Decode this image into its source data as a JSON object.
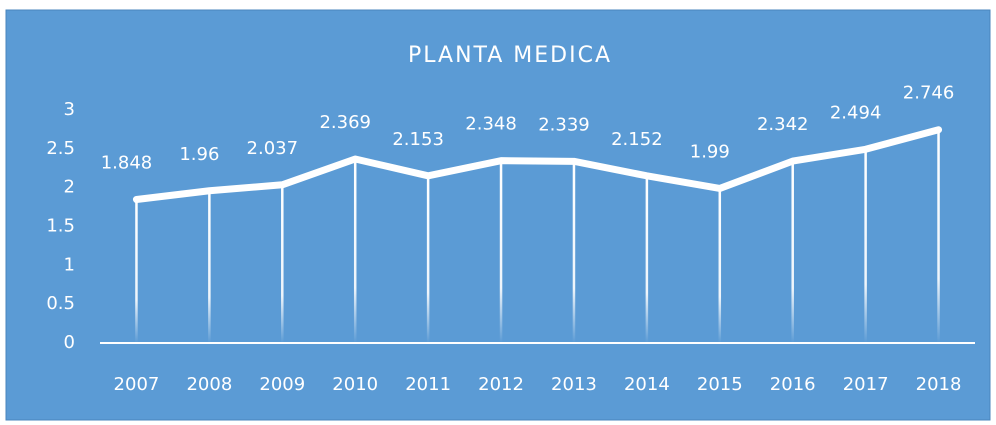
{
  "chart_data": {
    "type": "line",
    "title": "PLANTA MEDICA",
    "categories": [
      "2007",
      "2008",
      "2009",
      "2010",
      "2011",
      "2012",
      "2013",
      "2014",
      "2015",
      "2016",
      "2017",
      "2018"
    ],
    "values": [
      1.848,
      1.96,
      2.037,
      2.369,
      2.153,
      2.348,
      2.339,
      2.152,
      1.99,
      2.342,
      2.494,
      2.746
    ],
    "color": "#ffffff",
    "background": "#5b9bd5",
    "ylim": [
      0,
      3
    ],
    "yticks": [
      0,
      0.5,
      1,
      1.5,
      2,
      2.5,
      3
    ],
    "grid": false,
    "drop_lines": true
  }
}
